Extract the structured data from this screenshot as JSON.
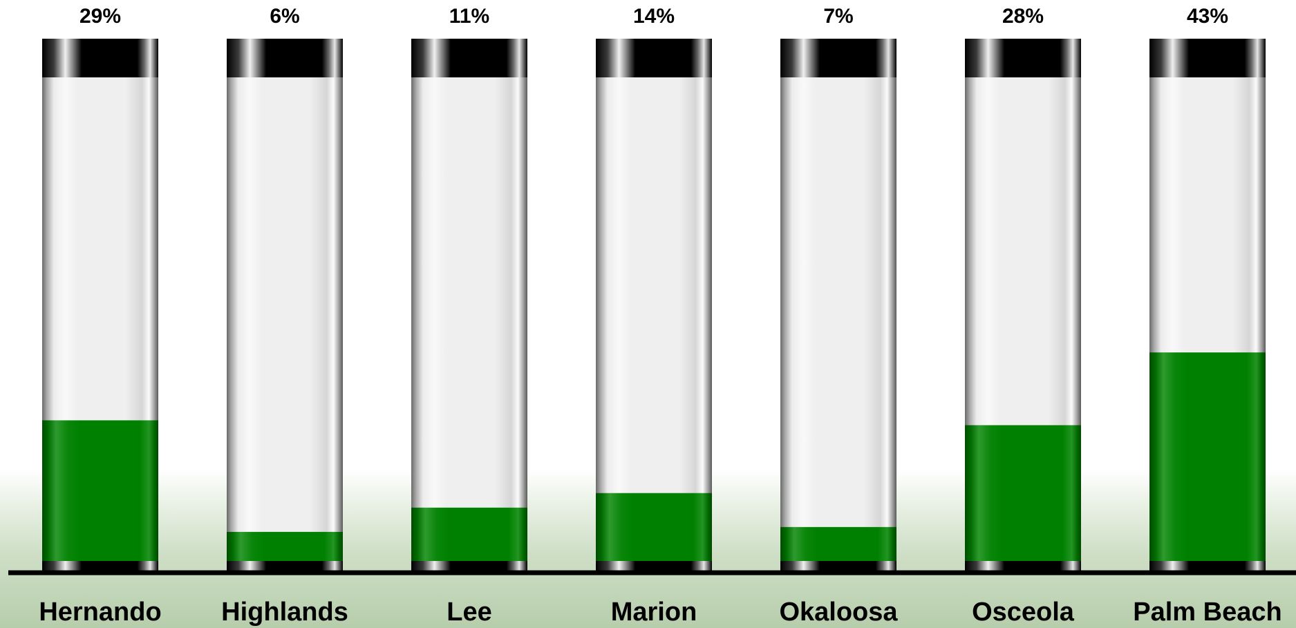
{
  "chart_data": {
    "type": "bar",
    "title": "",
    "xlabel": "",
    "ylabel": "",
    "ylim": [
      0,
      100
    ],
    "value_suffix": "%",
    "categories": [
      "Hernando",
      "Highlands",
      "Lee",
      "Marion",
      "Okaloosa",
      "Osceola",
      "Palm Beach"
    ],
    "values": [
      29,
      6,
      11,
      14,
      7,
      28,
      43
    ],
    "data_labels": [
      "29%",
      "6%",
      "11%",
      "14%",
      "7%",
      "28%",
      "43%"
    ],
    "grid": false,
    "legend": "none",
    "colors": {
      "fill": "#008000",
      "tube": "#f2f2f2",
      "cap": "#000000",
      "baseline": "#000000"
    }
  }
}
